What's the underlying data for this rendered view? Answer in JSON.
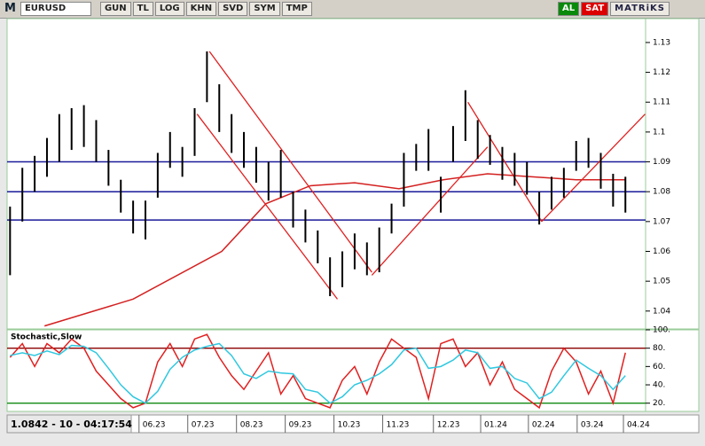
{
  "toolbar": {
    "symbol": "EURUSD",
    "buttons": [
      "GUN",
      "TL",
      "LOG",
      "KHN",
      "SVD",
      "SYM",
      "TMP"
    ],
    "logo": "M",
    "buy": "AL",
    "sell": "SAT",
    "brand": "MATRiKS"
  },
  "status": "1.0842 - 10 - 04:17:54",
  "chart_data": [
    {
      "type": "range-bar",
      "color": "#000000",
      "x": [
        -2.8,
        -2.55,
        -2.3,
        -2.05,
        -1.8,
        -1.55,
        -1.3,
        -1.05,
        -0.8,
        -0.55,
        -0.3,
        -0.05,
        0.2,
        0.45,
        0.7,
        0.95,
        1.2,
        1.45,
        1.7,
        1.95,
        2.2,
        2.45,
        2.7,
        2.95,
        3.2,
        3.45,
        3.7,
        3.95,
        4.2,
        4.45,
        4.7,
        4.95,
        5.2,
        5.45,
        5.7,
        5.95,
        6.2,
        6.45,
        6.7,
        6.95,
        7.2,
        7.45,
        7.7,
        7.95,
        8.2,
        8.45,
        8.7,
        8.95,
        9.2,
        9.45,
        9.7
      ],
      "high": [
        1.075,
        1.088,
        1.092,
        1.098,
        1.106,
        1.108,
        1.109,
        1.104,
        1.094,
        1.084,
        1.077,
        1.077,
        1.093,
        1.1,
        1.095,
        1.108,
        1.127,
        1.116,
        1.106,
        1.1,
        1.095,
        1.09,
        1.094,
        1.08,
        1.074,
        1.067,
        1.058,
        1.06,
        1.066,
        1.063,
        1.068,
        1.076,
        1.093,
        1.096,
        1.101,
        1.085,
        1.102,
        1.114,
        1.104,
        1.099,
        1.095,
        1.093,
        1.09,
        1.08,
        1.085,
        1.088,
        1.097,
        1.098,
        1.093,
        1.086,
        1.085
      ],
      "low": [
        1.052,
        1.07,
        1.08,
        1.085,
        1.09,
        1.094,
        1.095,
        1.09,
        1.082,
        1.073,
        1.066,
        1.064,
        1.078,
        1.088,
        1.085,
        1.092,
        1.11,
        1.1,
        1.093,
        1.088,
        1.083,
        1.077,
        1.078,
        1.068,
        1.063,
        1.056,
        1.045,
        1.048,
        1.054,
        1.052,
        1.053,
        1.066,
        1.075,
        1.087,
        1.087,
        1.073,
        1.09,
        1.097,
        1.091,
        1.089,
        1.084,
        1.082,
        1.079,
        1.069,
        1.074,
        1.078,
        1.087,
        1.088,
        1.081,
        1.075,
        1.073
      ],
      "moving_average": {
        "color": "#d42020",
        "x": [
          -2.1,
          -0.3,
          1.5,
          2.4,
          3.3,
          4.2,
          5.1,
          6.0,
          6.9,
          7.8,
          8.7,
          9.7
        ],
        "y": [
          1.035,
          1.044,
          1.06,
          1.076,
          1.082,
          1.083,
          1.081,
          1.084,
          1.086,
          1.085,
          1.084,
          1.084
        ]
      },
      "levels": [
        1.09,
        1.08,
        1.0705
      ],
      "level_color": "#1a1a9a",
      "trendlines": [
        {
          "x": [
            1.25,
            4.55
          ],
          "y": [
            1.127,
            1.053
          ]
        },
        {
          "x": [
            1.0,
            3.85
          ],
          "y": [
            1.106,
            1.044
          ]
        },
        {
          "x": [
            4.55,
            6.9
          ],
          "y": [
            1.052,
            1.095
          ]
        },
        {
          "x": [
            6.5,
            8.0
          ],
          "y": [
            1.11,
            1.07
          ]
        },
        {
          "x": [
            8.0,
            10.1
          ],
          "y": [
            1.07,
            1.106
          ]
        }
      ],
      "trend_color": "#e02020",
      "xlim": [
        -2.86,
        10.11
      ],
      "ylim": [
        1.034,
        1.138
      ],
      "yticks": [
        1.04,
        1.05,
        1.06,
        1.07,
        1.08,
        1.09,
        1.1,
        1.11,
        1.12,
        1.13
      ]
    },
    {
      "type": "line",
      "title": "Stochastic,Slow",
      "x": [
        -2.8,
        -2.55,
        -2.3,
        -2.05,
        -1.8,
        -1.55,
        -1.3,
        -1.05,
        -0.8,
        -0.55,
        -0.3,
        -0.05,
        0.2,
        0.45,
        0.7,
        0.95,
        1.2,
        1.45,
        1.7,
        1.95,
        2.2,
        2.45,
        2.7,
        2.95,
        3.2,
        3.45,
        3.7,
        3.95,
        4.2,
        4.45,
        4.7,
        4.95,
        5.2,
        5.45,
        5.7,
        5.95,
        6.2,
        6.45,
        6.7,
        6.95,
        7.2,
        7.45,
        7.7,
        7.95,
        8.2,
        8.45,
        8.7,
        8.95,
        9.2,
        9.45,
        9.7
      ],
      "series": [
        {
          "color": "#e02020",
          "values": [
            70,
            85,
            60,
            85,
            75,
            90,
            80,
            55,
            40,
            25,
            15,
            20,
            65,
            85,
            60,
            90,
            95,
            70,
            50,
            35,
            55,
            75,
            30,
            50,
            25,
            20,
            15,
            45,
            60,
            30,
            65,
            90,
            80,
            70,
            25,
            85,
            90,
            60,
            75,
            40,
            65,
            35,
            25,
            15,
            55,
            80,
            65,
            30,
            55,
            20,
            75
          ]
        },
        {
          "color": "#30c8e0",
          "values": [
            72,
            75,
            72,
            77,
            73,
            83,
            82,
            75,
            58,
            40,
            27,
            20,
            33,
            57,
            70,
            78,
            82,
            85,
            72,
            52,
            47,
            55,
            53,
            52,
            35,
            32,
            20,
            27,
            40,
            45,
            52,
            62,
            78,
            80,
            58,
            60,
            67,
            78,
            75,
            58,
            60,
            47,
            42,
            25,
            32,
            50,
            67,
            58,
            50,
            35,
            50
          ]
        }
      ],
      "levels": [
        80,
        20
      ],
      "level_colors": [
        "#8b0000",
        "#108a10"
      ],
      "xlim": [
        -2.86,
        10.11
      ],
      "ylim": [
        11,
        100
      ],
      "yticks": [
        {
          "value": 100,
          "label": "100."
        },
        {
          "value": 80,
          "label": "80."
        },
        {
          "value": 60,
          "label": "60."
        },
        {
          "value": 40,
          "label": "40."
        },
        {
          "value": 20,
          "label": "20."
        }
      ],
      "xticks": [
        {
          "value": -0.18,
          "label": "06.23"
        },
        {
          "value": 0.81,
          "label": "07.23"
        },
        {
          "value": 1.8,
          "label": "08.23"
        },
        {
          "value": 2.79,
          "label": "09.23"
        },
        {
          "value": 3.78,
          "label": "10.23"
        },
        {
          "value": 4.77,
          "label": "11.23"
        },
        {
          "value": 5.8,
          "label": "12.23"
        },
        {
          "value": 6.76,
          "label": "01.24"
        },
        {
          "value": 7.73,
          "label": "02.24"
        },
        {
          "value": 8.72,
          "label": "03.24"
        },
        {
          "value": 9.66,
          "label": "04.24"
        }
      ]
    }
  ]
}
